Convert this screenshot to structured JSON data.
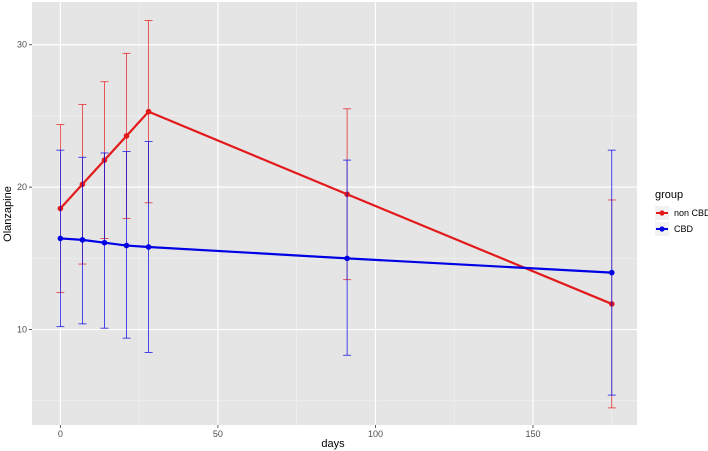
{
  "chart_data": {
    "type": "line",
    "title": "",
    "xlabel": "days",
    "ylabel": "Olanzapine",
    "xlim": [
      -9,
      183
    ],
    "ylim": [
      3.3,
      33
    ],
    "x_ticks": [
      0,
      50,
      100,
      150
    ],
    "x_tick_labels": [
      "0",
      "50",
      "100",
      "150"
    ],
    "y_ticks": [
      10,
      20,
      30
    ],
    "y_tick_labels": [
      "10",
      "20",
      "30"
    ],
    "grid": true,
    "legend": {
      "title": "group",
      "position": "right",
      "entries": [
        "non CBD",
        "CBD"
      ]
    },
    "series": [
      {
        "name": "non CBD",
        "color": "#e31a1c",
        "x": [
          0,
          7,
          14,
          21,
          28,
          91,
          175
        ],
        "y": [
          18.5,
          20.2,
          21.9,
          23.6,
          25.3,
          19.5,
          11.8
        ],
        "lower": [
          12.6,
          14.6,
          16.4,
          17.8,
          18.9,
          13.5,
          4.5
        ],
        "upper": [
          24.4,
          25.8,
          27.4,
          29.4,
          31.7,
          25.5,
          19.1
        ]
      },
      {
        "name": "CBD",
        "color": "#0000e6",
        "x": [
          0,
          7,
          14,
          21,
          28,
          91,
          175
        ],
        "y": [
          16.4,
          16.3,
          16.1,
          15.9,
          15.8,
          15.0,
          14.0
        ],
        "lower": [
          10.2,
          10.4,
          10.1,
          9.4,
          8.4,
          8.2,
          5.4
        ],
        "upper": [
          22.6,
          22.1,
          22.4,
          22.5,
          23.2,
          21.9,
          22.6
        ]
      }
    ]
  }
}
